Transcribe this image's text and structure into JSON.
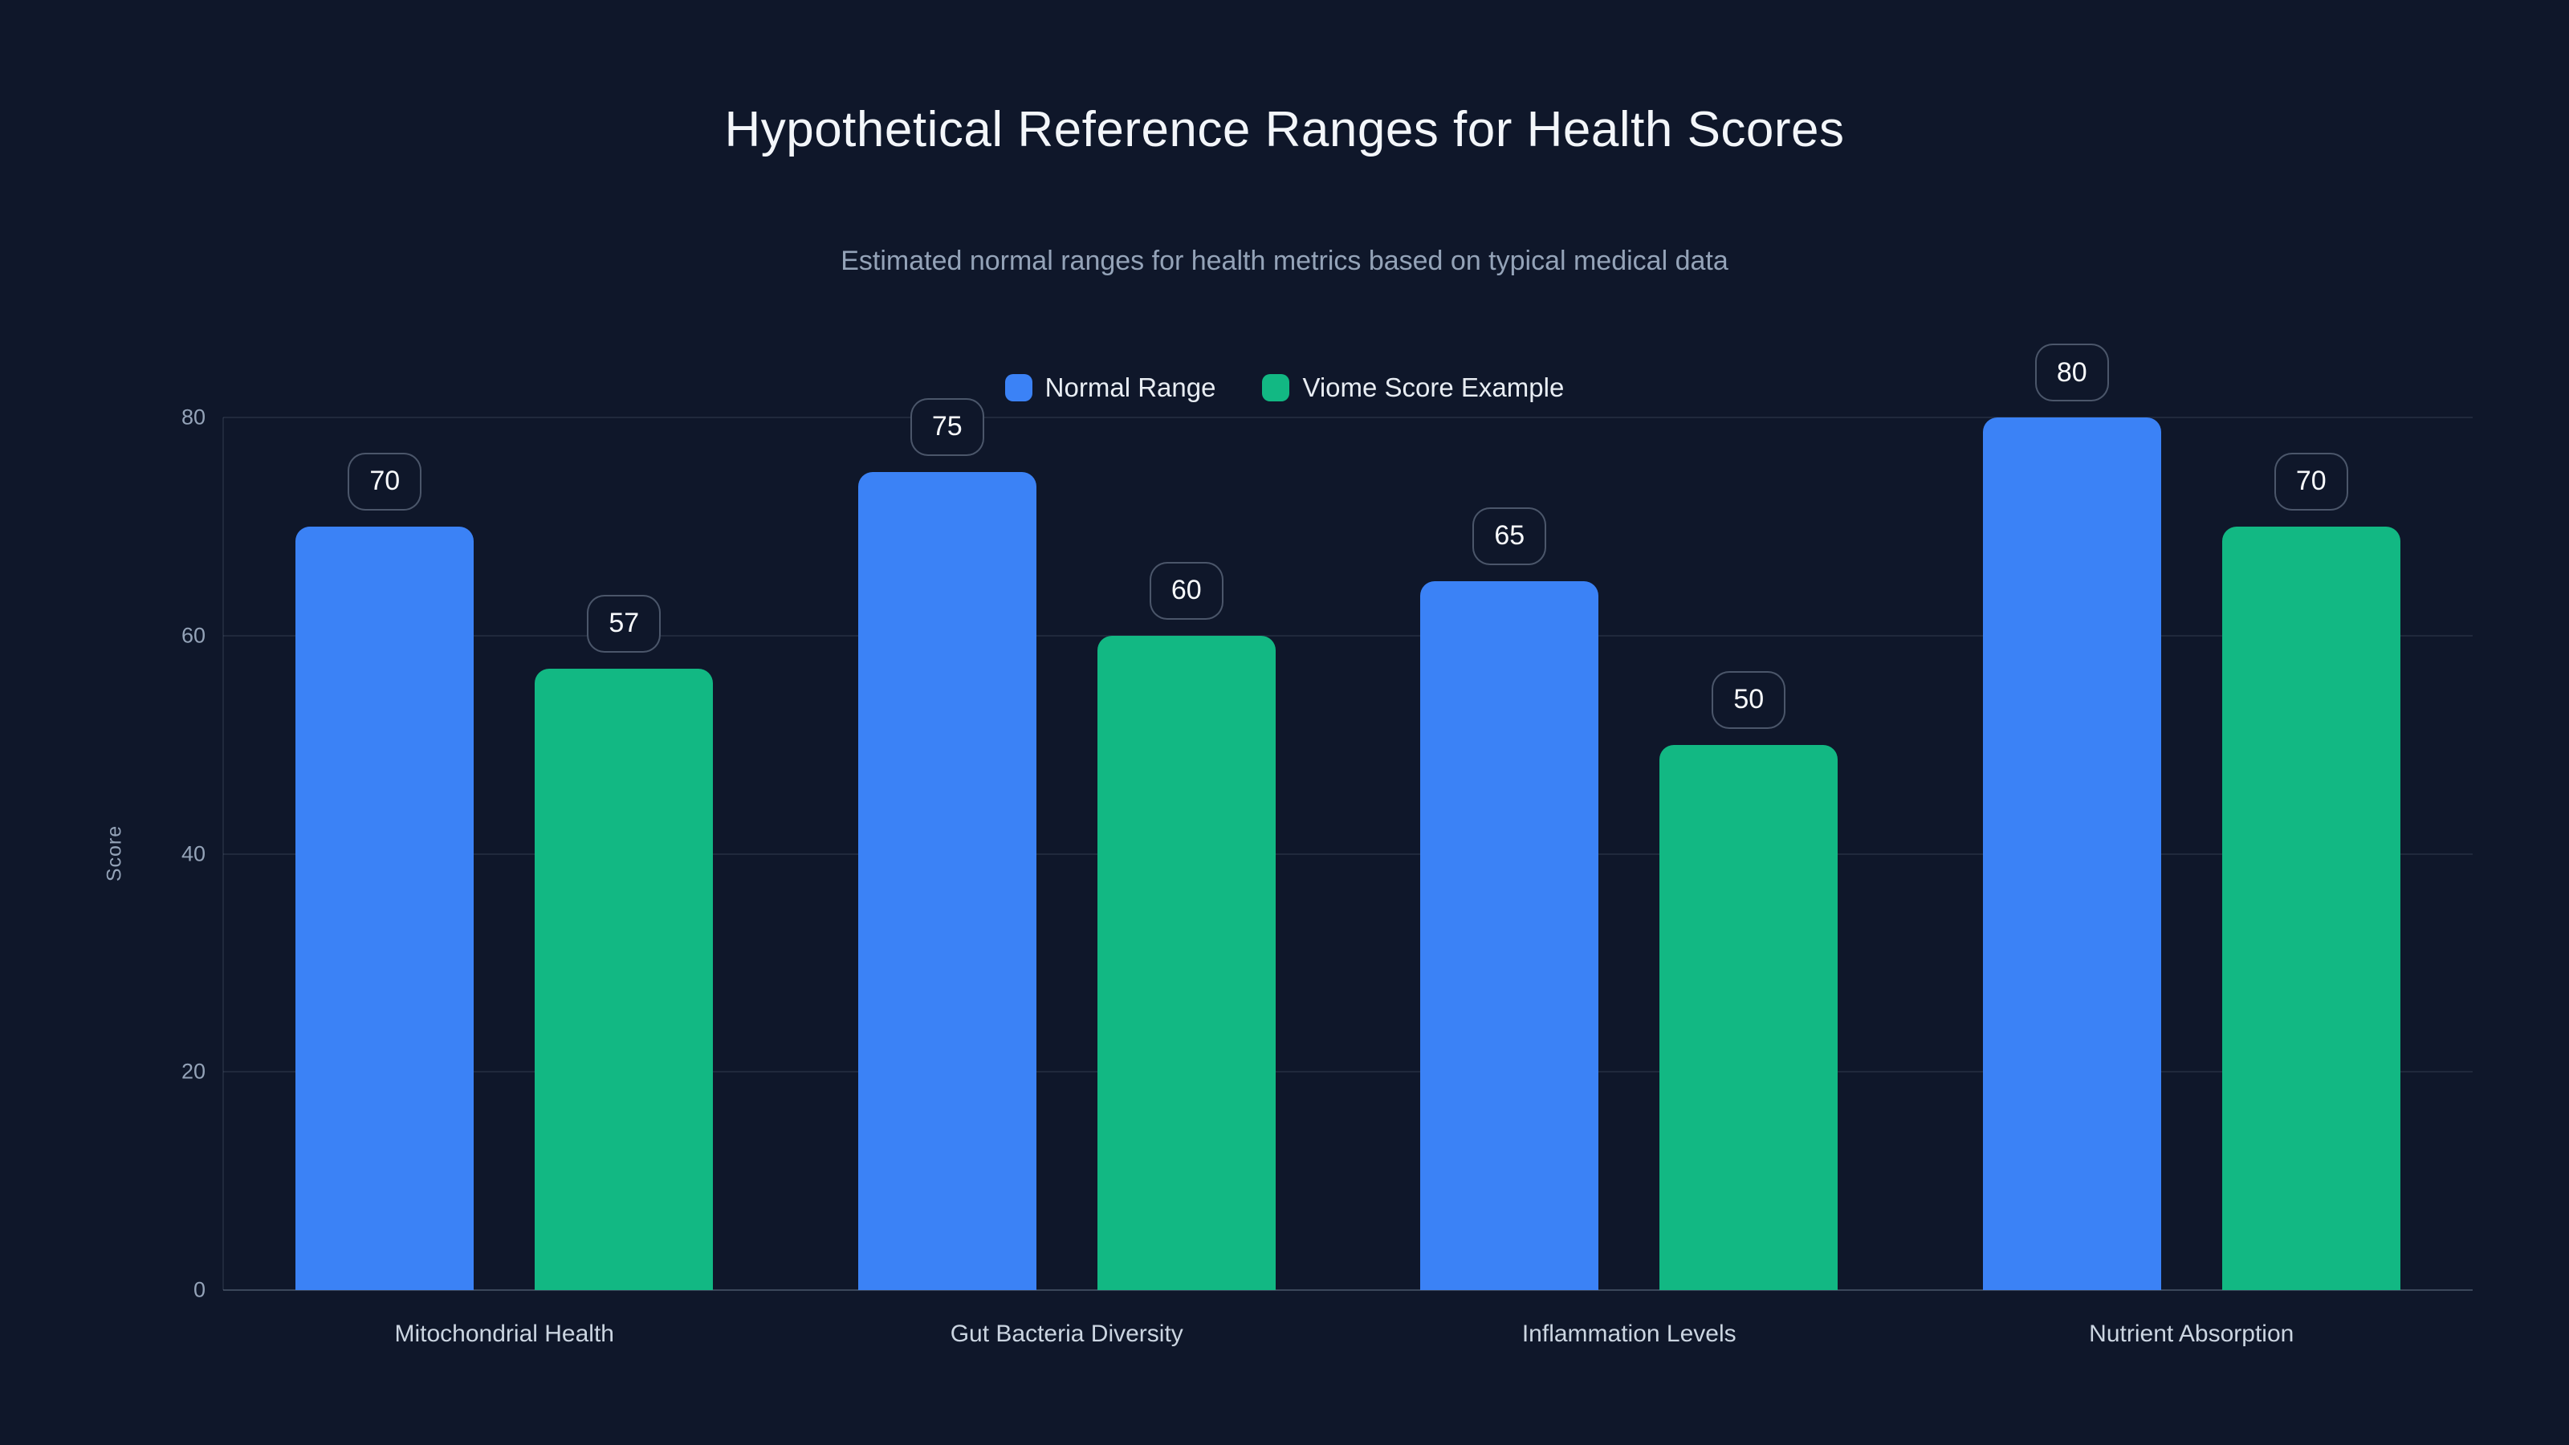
{
  "page": {
    "background_color": "#0f172a"
  },
  "chart_data": {
    "type": "bar",
    "title": "Hypothetical Reference Ranges for Health Scores",
    "subtitle": "Estimated normal ranges for health metrics based on typical medical data",
    "categories": [
      "Mitochondrial Health",
      "Gut Bacteria Diversity",
      "Inflammation Levels",
      "Nutrient Absorption"
    ],
    "series": [
      {
        "name": "Normal Range",
        "color": "#3b82f6",
        "values": [
          70,
          75,
          65,
          80
        ]
      },
      {
        "name": "Viome Score Example",
        "color": "#12b883",
        "values": [
          57,
          60,
          50,
          70
        ]
      }
    ],
    "xlabel": "",
    "ylabel": "Score",
    "ylim": [
      0,
      80
    ],
    "yticks": [
      0,
      20,
      40,
      60,
      80
    ],
    "grid": true,
    "legend_position": "top-center",
    "value_labels": true,
    "value_label_style": "rounded-outline-badge",
    "text_colors": {
      "title": "#f3f6fa",
      "subtitle": "#94a3b8",
      "axis_ticks": "#94a3b8",
      "category_labels": "#cbd5e1",
      "legend_labels": "#e8edf3",
      "badge_text": "#f8fafc"
    }
  }
}
